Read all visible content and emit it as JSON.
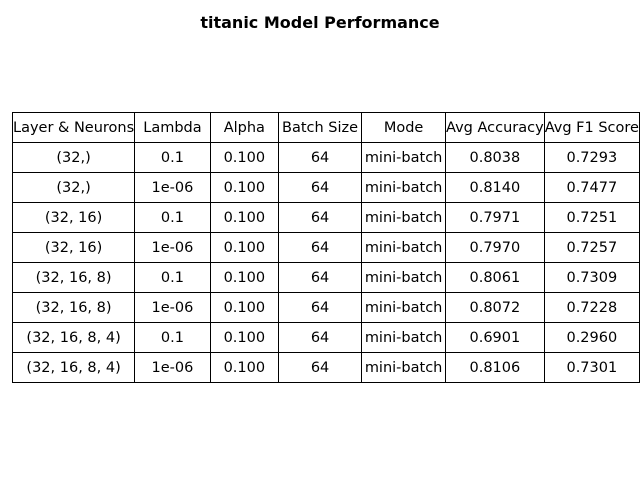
{
  "chart_data": {
    "type": "table",
    "title": "titanic Model Performance",
    "columns": [
      "Layer & Neurons",
      "Lambda",
      "Alpha",
      "Batch Size",
      "Mode",
      "Avg Accuracy",
      "Avg F1 Score"
    ],
    "rows": [
      [
        "(32,)",
        "0.1",
        "0.100",
        "64",
        "mini-batch",
        "0.8038",
        "0.7293"
      ],
      [
        "(32,)",
        "1e-06",
        "0.100",
        "64",
        "mini-batch",
        "0.8140",
        "0.7477"
      ],
      [
        "(32, 16)",
        "0.1",
        "0.100",
        "64",
        "mini-batch",
        "0.7971",
        "0.7251"
      ],
      [
        "(32, 16)",
        "1e-06",
        "0.100",
        "64",
        "mini-batch",
        "0.7970",
        "0.7257"
      ],
      [
        "(32, 16, 8)",
        "0.1",
        "0.100",
        "64",
        "mini-batch",
        "0.8061",
        "0.7309"
      ],
      [
        "(32, 16, 8)",
        "1e-06",
        "0.100",
        "64",
        "mini-batch",
        "0.8072",
        "0.7228"
      ],
      [
        "(32, 16, 8, 4)",
        "0.1",
        "0.100",
        "64",
        "mini-batch",
        "0.6901",
        "0.2960"
      ],
      [
        "(32, 16, 8, 4)",
        "1e-06",
        "0.100",
        "64",
        "mini-batch",
        "0.8106",
        "0.7301"
      ]
    ]
  }
}
